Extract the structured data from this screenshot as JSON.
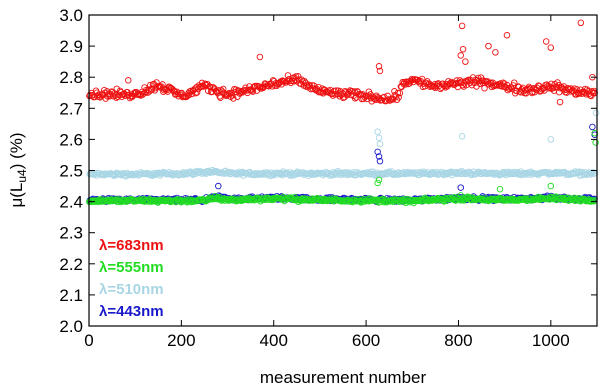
{
  "chart_data": {
    "type": "scatter",
    "xlabel": "measurement number",
    "ylabel_base": "μ(L",
    "ylabel_sub": "u4",
    "ylabel_tail": ") (%)",
    "xlim": [
      0,
      1100
    ],
    "ylim": [
      2.0,
      3.0
    ],
    "x_ticks": [
      0,
      200,
      400,
      600,
      800,
      1000
    ],
    "x_tick_labels": [
      "0",
      "200",
      "400",
      "600",
      "800",
      "1000"
    ],
    "y_ticks": [
      2.0,
      2.1,
      2.2,
      2.3,
      2.4,
      2.5,
      2.6,
      2.7,
      2.8,
      2.9,
      3.0
    ],
    "y_tick_labels": [
      "2.0",
      "2.1",
      "2.2",
      "2.3",
      "2.4",
      "2.5",
      "2.6",
      "2.7",
      "2.8",
      "2.9",
      "3.0"
    ],
    "grid": false,
    "legend_position": "bottom-left",
    "marker": "open-circle",
    "series": [
      {
        "name": "λ=683nm",
        "color": "#ee1111",
        "baseline_x": [
          0,
          60,
          100,
          150,
          200,
          250,
          300,
          350,
          400,
          450,
          500,
          550,
          600,
          650,
          670,
          680,
          700,
          750,
          800,
          850,
          900,
          950,
          1000,
          1050,
          1100
        ],
        "baseline_y": [
          2.745,
          2.745,
          2.745,
          2.775,
          2.74,
          2.77,
          2.745,
          2.76,
          2.78,
          2.79,
          2.755,
          2.745,
          2.74,
          2.73,
          2.745,
          2.785,
          2.79,
          2.77,
          2.78,
          2.785,
          2.77,
          2.76,
          2.77,
          2.755,
          2.75
        ],
        "noise": 0.012,
        "outliers": [
          [
            85,
            2.79
          ],
          [
            370,
            2.865
          ],
          [
            628,
            2.835
          ],
          [
            630,
            2.82
          ],
          [
            805,
            2.87
          ],
          [
            808,
            2.965
          ],
          [
            810,
            2.89
          ],
          [
            815,
            2.85
          ],
          [
            865,
            2.9
          ],
          [
            880,
            2.88
          ],
          [
            905,
            2.935
          ],
          [
            990,
            2.915
          ],
          [
            1000,
            2.895
          ],
          [
            1065,
            2.975
          ],
          [
            1090,
            2.8
          ],
          [
            1095,
            2.75
          ],
          [
            1020,
            2.72
          ]
        ]
      },
      {
        "name": "λ=555nm",
        "color": "#22dd22",
        "baseline_x": [
          0,
          250,
          270,
          300,
          400,
          500,
          600,
          700,
          800,
          900,
          1000,
          1100
        ],
        "baseline_y": [
          2.403,
          2.403,
          2.412,
          2.405,
          2.41,
          2.405,
          2.404,
          2.402,
          2.41,
          2.405,
          2.41,
          2.405
        ],
        "noise": 0.005,
        "outliers": [
          [
            625,
            2.46
          ],
          [
            628,
            2.47
          ],
          [
            805,
            2.42
          ],
          [
            890,
            2.44
          ],
          [
            1000,
            2.45
          ],
          [
            1095,
            2.62
          ],
          [
            1097,
            2.59
          ]
        ]
      },
      {
        "name": "λ=510nm",
        "color": "#a9d6e5",
        "baseline_x": [
          0,
          100,
          200,
          270,
          300,
          400,
          500,
          600,
          700,
          800,
          900,
          1000,
          1100
        ],
        "baseline_y": [
          2.488,
          2.488,
          2.49,
          2.497,
          2.49,
          2.49,
          2.49,
          2.49,
          2.49,
          2.492,
          2.49,
          2.492,
          2.49
        ],
        "noise": 0.005,
        "outliers": [
          [
            625,
            2.625
          ],
          [
            628,
            2.605
          ],
          [
            630,
            2.585
          ],
          [
            808,
            2.61
          ],
          [
            1000,
            2.6
          ],
          [
            1098,
            2.685
          ]
        ]
      },
      {
        "name": "λ=443nm",
        "color": "#1a1acc",
        "baseline_x": [
          0,
          250,
          280,
          300,
          400,
          500,
          600,
          700,
          800,
          900,
          1000,
          1100
        ],
        "baseline_y": [
          2.405,
          2.405,
          2.415,
          2.408,
          2.412,
          2.408,
          2.406,
          2.405,
          2.412,
          2.408,
          2.412,
          2.408
        ],
        "noise": 0.005,
        "outliers": [
          [
            280,
            2.45
          ],
          [
            625,
            2.56
          ],
          [
            628,
            2.545
          ],
          [
            630,
            2.53
          ],
          [
            805,
            2.445
          ],
          [
            1095,
            2.615
          ],
          [
            1090,
            2.64
          ]
        ]
      }
    ]
  }
}
